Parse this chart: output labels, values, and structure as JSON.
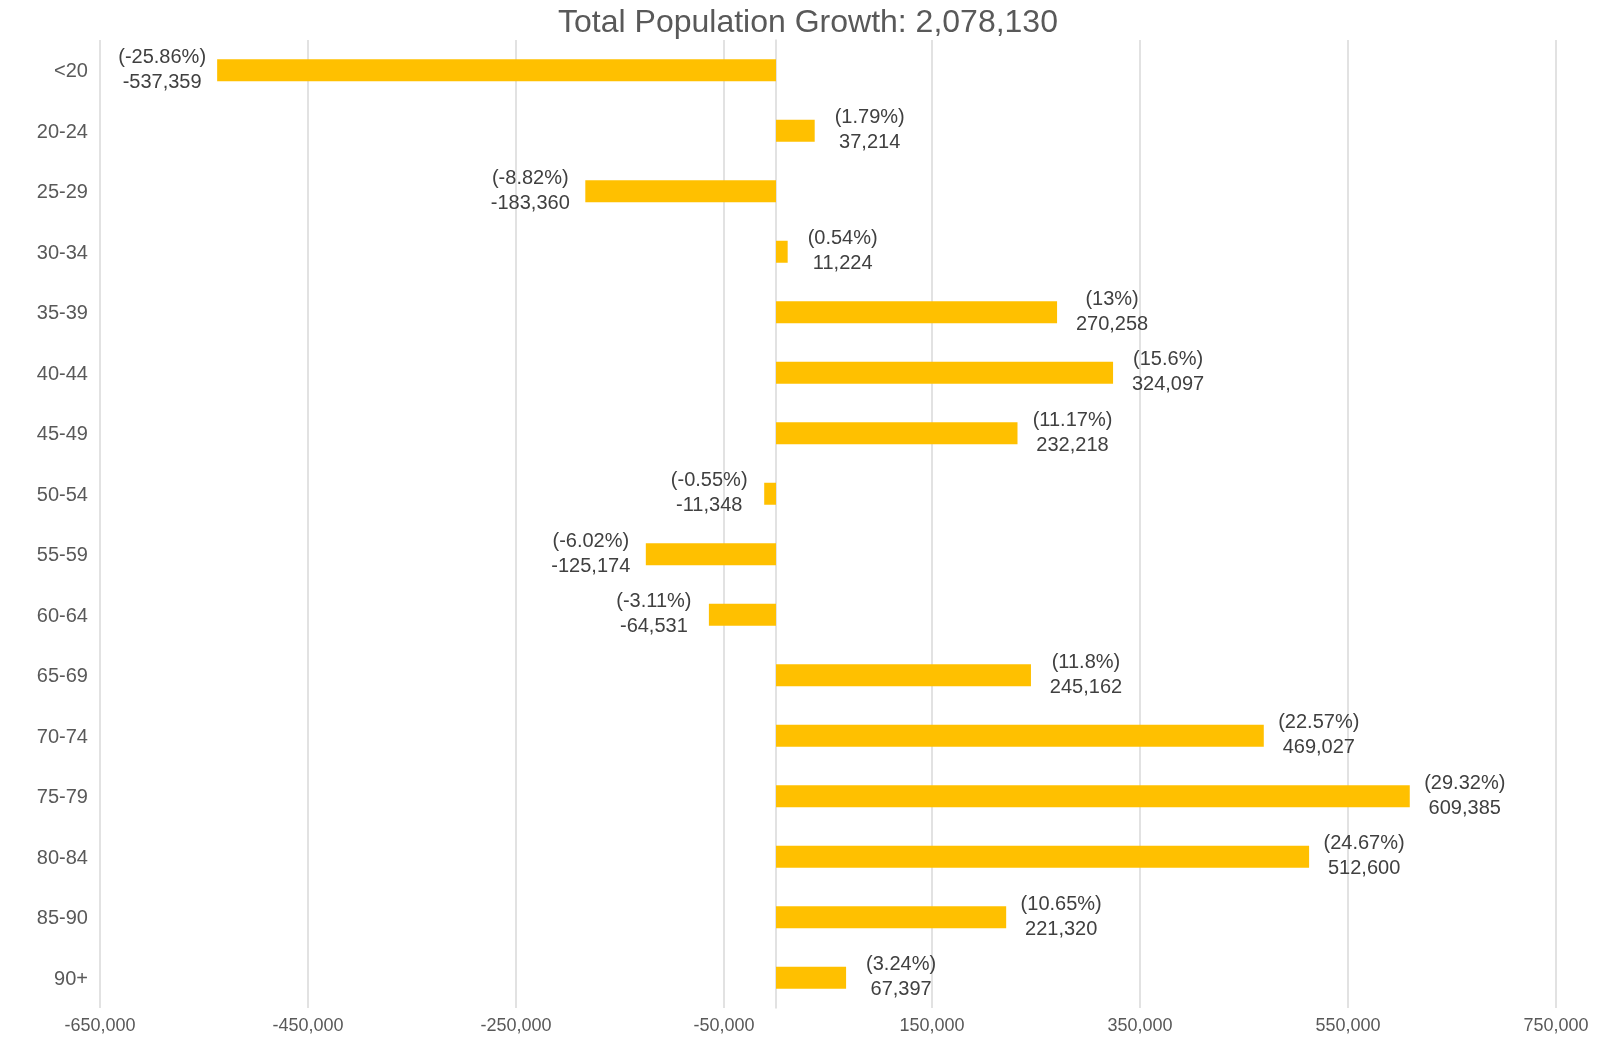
{
  "chart_data": {
    "type": "bar",
    "orientation": "horizontal",
    "title": "Total Population Growth: 2,078,130",
    "categories": [
      "<20",
      "20-24",
      "25-29",
      "30-34",
      "35-39",
      "40-44",
      "45-49",
      "50-54",
      "55-59",
      "60-64",
      "65-69",
      "70-74",
      "75-79",
      "80-84",
      "85-90",
      "90+"
    ],
    "values": [
      -537359,
      37214,
      -183360,
      11224,
      270258,
      324097,
      232218,
      -11348,
      -125174,
      -64531,
      245162,
      469027,
      609385,
      512600,
      221320,
      67397
    ],
    "value_labels": [
      "(-25.86%)\n-537,359",
      "(1.79%)\n37,214",
      "(-8.82%)\n-183,360",
      "(0.54%)\n11,224",
      "(13%)\n270,258",
      "(15.6%)\n324,097",
      "(11.17%)\n232,218",
      "(-0.55%)\n-11,348",
      "(-6.02%)\n-125,174",
      "(-3.11%)\n-64,531",
      "(11.8%)\n245,162",
      "(22.57%)\n469,027",
      "(29.32%)\n609,385",
      "(24.67%)\n512,600",
      "(10.65%)\n221,320",
      "(3.24%)\n67,397"
    ],
    "color": "#ffc000",
    "xlim": [
      -650000,
      750000
    ],
    "xticks": [
      {
        "value": -650000,
        "label": "-650,000"
      },
      {
        "value": -450000,
        "label": "-450,000"
      },
      {
        "value": -250000,
        "label": "-250,000"
      },
      {
        "value": -50000,
        "label": "-50,000"
      },
      {
        "value": 150000,
        "label": "150,000"
      },
      {
        "value": 350000,
        "label": "350,000"
      },
      {
        "value": 550000,
        "label": "550,000"
      },
      {
        "value": 750000,
        "label": "750,000"
      }
    ],
    "grid": "x"
  }
}
